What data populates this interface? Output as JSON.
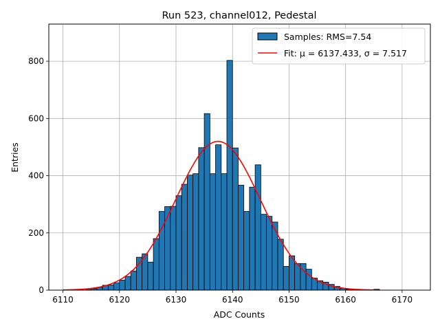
{
  "chart_data": {
    "type": "bar",
    "title": "Run 523, channel012, Pedestal",
    "xlabel": "ADC Counts",
    "ylabel": "Entries",
    "xlim": [
      6107.5,
      6175
    ],
    "ylim": [
      0,
      930
    ],
    "xticks": [
      6110,
      6120,
      6130,
      6140,
      6150,
      6160,
      6170
    ],
    "yticks": [
      0,
      200,
      400,
      600,
      800
    ],
    "grid": true,
    "legend_position": "top-right",
    "colors": {
      "bars": "#1f77b4",
      "bar_edge": "#000000",
      "fit": "#ff0000"
    },
    "histogram": {
      "name": "Samples: RMS=7.54",
      "bin_width": 1,
      "bins": [
        {
          "x": 6110,
          "y": 0
        },
        {
          "x": 6111,
          "y": 0
        },
        {
          "x": 6112,
          "y": 0
        },
        {
          "x": 6113,
          "y": 0
        },
        {
          "x": 6114,
          "y": 2
        },
        {
          "x": 6115,
          "y": 5
        },
        {
          "x": 6116,
          "y": 10
        },
        {
          "x": 6117,
          "y": 17
        },
        {
          "x": 6118,
          "y": 18
        },
        {
          "x": 6119,
          "y": 25
        },
        {
          "x": 6120,
          "y": 35
        },
        {
          "x": 6121,
          "y": 48
        },
        {
          "x": 6122,
          "y": 67
        },
        {
          "x": 6123,
          "y": 115
        },
        {
          "x": 6124,
          "y": 127
        },
        {
          "x": 6125,
          "y": 98
        },
        {
          "x": 6126,
          "y": 180
        },
        {
          "x": 6127,
          "y": 275
        },
        {
          "x": 6128,
          "y": 292
        },
        {
          "x": 6129,
          "y": 293
        },
        {
          "x": 6130,
          "y": 330
        },
        {
          "x": 6131,
          "y": 370
        },
        {
          "x": 6132,
          "y": 402
        },
        {
          "x": 6133,
          "y": 407
        },
        {
          "x": 6134,
          "y": 498
        },
        {
          "x": 6135,
          "y": 617
        },
        {
          "x": 6136,
          "y": 407
        },
        {
          "x": 6137,
          "y": 508
        },
        {
          "x": 6138,
          "y": 407
        },
        {
          "x": 6139,
          "y": 803
        },
        {
          "x": 6140,
          "y": 497
        },
        {
          "x": 6141,
          "y": 367
        },
        {
          "x": 6142,
          "y": 275
        },
        {
          "x": 6143,
          "y": 360
        },
        {
          "x": 6144,
          "y": 438
        },
        {
          "x": 6145,
          "y": 265
        },
        {
          "x": 6146,
          "y": 258
        },
        {
          "x": 6147,
          "y": 238
        },
        {
          "x": 6148,
          "y": 178
        },
        {
          "x": 6149,
          "y": 83
        },
        {
          "x": 6150,
          "y": 120
        },
        {
          "x": 6151,
          "y": 93
        },
        {
          "x": 6152,
          "y": 93
        },
        {
          "x": 6153,
          "y": 73
        },
        {
          "x": 6154,
          "y": 42
        },
        {
          "x": 6155,
          "y": 33
        },
        {
          "x": 6156,
          "y": 28
        },
        {
          "x": 6157,
          "y": 20
        },
        {
          "x": 6158,
          "y": 13
        },
        {
          "x": 6159,
          "y": 6
        },
        {
          "x": 6160,
          "y": 3
        },
        {
          "x": 6161,
          "y": 2
        },
        {
          "x": 6162,
          "y": 1
        },
        {
          "x": 6163,
          "y": 1
        },
        {
          "x": 6164,
          "y": 0
        },
        {
          "x": 6165,
          "y": 3
        }
      ]
    },
    "fit": {
      "name": "Fit: μ = 6137.433, σ = 7.517",
      "type": "gaussian",
      "mean": 6137.433,
      "sigma": 7.517,
      "amplitude": 520,
      "x_range": [
        6110,
        6166
      ]
    }
  }
}
